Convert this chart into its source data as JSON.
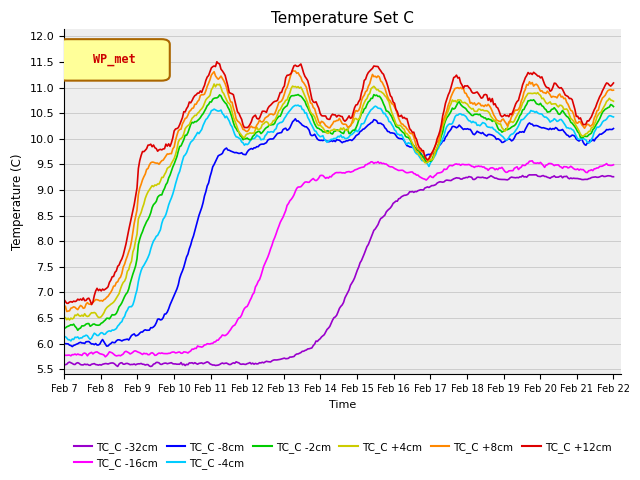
{
  "title": "Temperature Set C",
  "xlabel": "Time",
  "ylabel": "Temperature (C)",
  "yticks": [
    5.5,
    6.0,
    6.5,
    7.0,
    7.5,
    8.0,
    8.5,
    9.0,
    9.5,
    10.0,
    10.5,
    11.0,
    11.5,
    12.0
  ],
  "date_labels": [
    "Feb 7",
    "Feb 8",
    "Feb 9",
    "Feb 10",
    "Feb 11",
    "Feb 12",
    "Feb 13",
    "Feb 14",
    "Feb 15",
    "Feb 16",
    "Feb 17",
    "Feb 18",
    "Feb 19",
    "Feb 20",
    "Feb 21",
    "Feb 22"
  ],
  "legend_label": "WP_met",
  "series_names": [
    "TC_C -32cm",
    "TC_C -16cm",
    "TC_C -8cm",
    "TC_C -4cm",
    "TC_C -2cm",
    "TC_C +4cm",
    "TC_C +8cm",
    "TC_C +12cm"
  ],
  "series_colors": [
    "#9900cc",
    "#ff00ff",
    "#0000ff",
    "#00ccff",
    "#00cc00",
    "#cccc00",
    "#ff8800",
    "#dd0000"
  ],
  "bg_color": "#eeeeee",
  "grid_color": "#cccccc"
}
